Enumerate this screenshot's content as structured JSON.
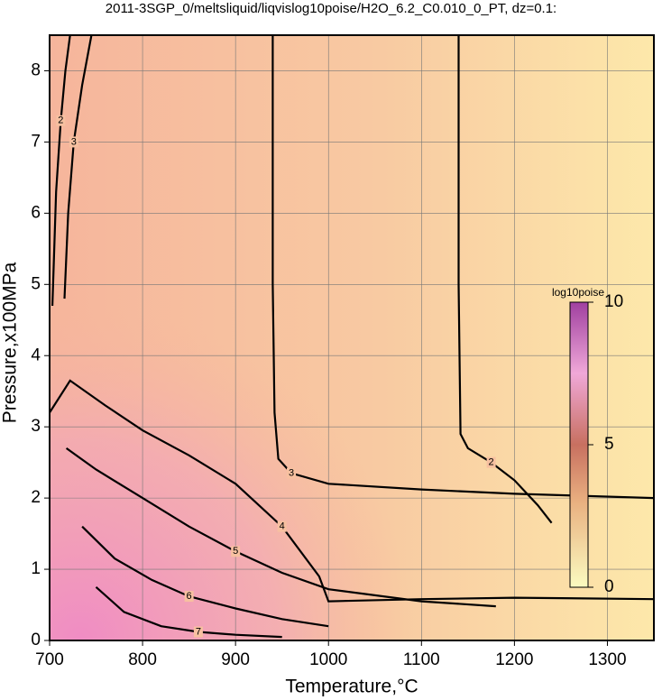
{
  "chart_data": {
    "type": "contour",
    "title": "2011-3SGP_0/meltsliquid/liqvislog10poise/H2O_6.2_C0.010_0_PT, dz=0.1:",
    "xlabel": "Temperature,°C",
    "ylabel": "Pressure,x100MPa",
    "xlim": [
      700,
      1350
    ],
    "xticks": [
      700,
      800,
      900,
      1000,
      1100,
      1200,
      1300
    ],
    "ylim": [
      0,
      8.5
    ],
    "yticks": [
      0,
      1,
      2,
      3,
      4,
      5,
      6,
      7,
      8
    ],
    "grid": true,
    "contours": [
      {
        "level": 2,
        "x": [
          1140,
          1140,
          1142,
          1150,
          1175,
          1200,
          1225,
          1240
        ],
        "y": [
          8.5,
          5,
          2.9,
          2.7,
          2.5,
          2.25,
          1.9,
          1.65
        ]
      },
      {
        "level": 3,
        "x": [
          940,
          940,
          942,
          946,
          960,
          1000,
          1100,
          1200,
          1350
        ],
        "y": [
          8.5,
          5,
          3.2,
          2.55,
          2.35,
          2.2,
          2.12,
          2.06,
          2.0
        ]
      },
      {
        "level": 3,
        "x": [
          716,
          720,
          726,
          735,
          745
        ],
        "y": [
          4.8,
          6,
          7,
          7.8,
          8.5
        ]
      },
      {
        "level": 2,
        "x": [
          703,
          707,
          712,
          717,
          722
        ],
        "y": [
          4.7,
          6.3,
          7.3,
          8,
          8.5
        ]
      },
      {
        "level": 4,
        "x": [
          700,
          722,
          760,
          800,
          850,
          900,
          950,
          990,
          1000,
          1100,
          1200,
          1350
        ],
        "y": [
          3.2,
          3.65,
          3.3,
          2.95,
          2.6,
          2.2,
          1.6,
          0.9,
          0.55,
          0.58,
          0.6,
          0.58
        ]
      },
      {
        "level": 5,
        "x": [
          718,
          750,
          800,
          850,
          900,
          950,
          1000,
          1100,
          1180
        ],
        "y": [
          2.7,
          2.4,
          2.0,
          1.6,
          1.25,
          0.95,
          0.72,
          0.55,
          0.48
        ]
      },
      {
        "level": 6,
        "x": [
          735,
          770,
          810,
          850,
          900,
          950,
          1000
        ],
        "y": [
          1.6,
          1.15,
          0.85,
          0.62,
          0.45,
          0.3,
          0.2
        ]
      },
      {
        "level": 7,
        "x": [
          750,
          780,
          820,
          860,
          900,
          950
        ],
        "y": [
          0.75,
          0.4,
          0.2,
          0.12,
          0.08,
          0.05
        ]
      }
    ],
    "colorbar": {
      "label": "log10poise",
      "lim": [
        0,
        10
      ],
      "ticks": [
        0,
        5,
        10
      ]
    }
  }
}
